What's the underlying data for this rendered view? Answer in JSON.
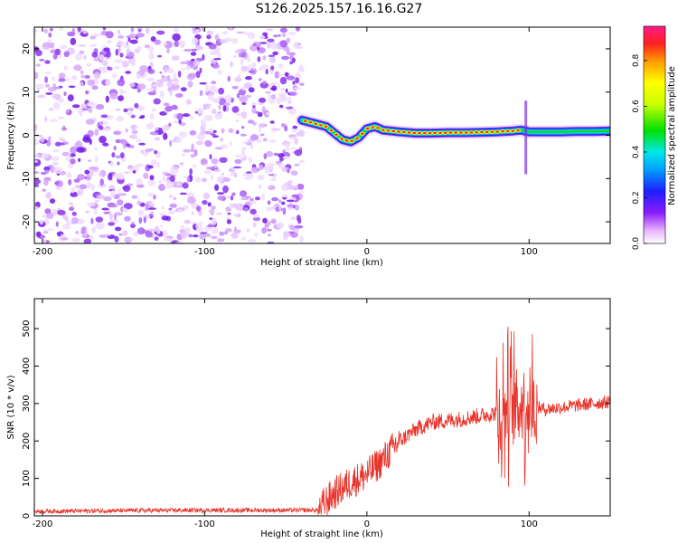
{
  "title": "S126.2025.157.16.16.G27",
  "chart_data": [
    {
      "type": "heatmap",
      "xlabel": "Height of straight line (km)",
      "ylabel": "Frequency (Hz)",
      "xlim": [
        -205,
        150
      ],
      "ylim": [
        -25,
        25
      ],
      "x_ticks": [
        -200,
        -100,
        0,
        100
      ],
      "y_ticks": [
        -20,
        -10,
        0,
        10,
        20
      ],
      "noise_region_x": [
        -205,
        -40
      ],
      "signal_trace": {
        "x": [
          -40,
          -35,
          -30,
          -25,
          -20,
          -15,
          -10,
          -5,
          0,
          5,
          10,
          20,
          30,
          40,
          50,
          60,
          70,
          80,
          90,
          95,
          100,
          110,
          120,
          130,
          140,
          150
        ],
        "y": [
          3.5,
          3.0,
          2.5,
          2.0,
          0.5,
          -1.0,
          -1.5,
          -0.5,
          1.5,
          2.0,
          1.2,
          0.8,
          0.5,
          0.5,
          0.6,
          0.6,
          0.7,
          0.8,
          1.0,
          1.2,
          0.8,
          0.8,
          0.8,
          0.9,
          0.9,
          1.0
        ]
      },
      "colorbar": {
        "label": "Normalized spectral amplitude",
        "range": [
          0.0,
          0.95
        ],
        "ticks": [
          "0.0",
          "0.2",
          "0.4",
          "0.6",
          "0.8"
        ]
      }
    },
    {
      "type": "line",
      "xlabel": "Height of straight line (km)",
      "ylabel": "SNR (10 * v/v)",
      "xlim": [
        -205,
        150
      ],
      "ylim": [
        0,
        580
      ],
      "x_ticks": [
        -200,
        -100,
        0,
        100
      ],
      "y_ticks": [
        0,
        100,
        200,
        300,
        400,
        500
      ],
      "color": "#e8332a",
      "envelope": {
        "x": [
          -205,
          -150,
          -100,
          -50,
          -30,
          -25,
          -20,
          -10,
          0,
          10,
          20,
          30,
          40,
          60,
          80,
          90,
          95,
          100,
          105,
          110,
          120,
          130,
          140,
          150
        ],
        "y": [
          12,
          14,
          15,
          15,
          15,
          40,
          60,
          90,
          110,
          150,
          200,
          230,
          250,
          260,
          275,
          285,
          300,
          300,
          290,
          285,
          290,
          295,
          300,
          305
        ]
      }
    }
  ]
}
